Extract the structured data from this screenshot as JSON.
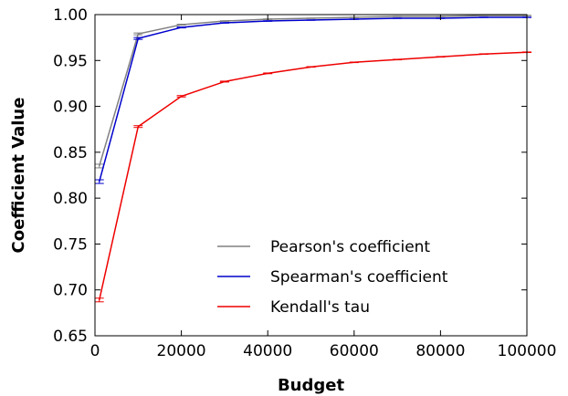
{
  "chart_data": {
    "type": "line",
    "xlabel": "Budget",
    "ylabel": "Coefficient Value",
    "xlim": [
      0,
      100000
    ],
    "ylim": [
      0.65,
      1.0
    ],
    "xticks": [
      0,
      20000,
      40000,
      60000,
      80000,
      100000
    ],
    "xtick_labels": [
      "0",
      "20000",
      "40000",
      "60000",
      "80000",
      "100000"
    ],
    "yticks": [
      0.65,
      0.7,
      0.75,
      0.8,
      0.85,
      0.9,
      0.95,
      1.0
    ],
    "ytick_labels": [
      "0.65",
      "0.70",
      "0.75",
      "0.80",
      "0.85",
      "0.90",
      "0.95",
      "1.00"
    ],
    "grid": false,
    "legend_position": "bottom-right",
    "x": [
      1000,
      10000,
      20000,
      30000,
      40000,
      50000,
      60000,
      70000,
      80000,
      90000,
      100000
    ],
    "series": [
      {
        "name": "Pearson's coefficient",
        "color": "#808080",
        "values": [
          0.835,
          0.979,
          0.989,
          0.993,
          0.995,
          0.996,
          0.997,
          0.998,
          0.998,
          0.999,
          0.999
        ],
        "errors": [
          0.002,
          0.001,
          0.0005,
          0.0003,
          0.0003,
          0.0002,
          0.0002,
          0.0002,
          0.0002,
          0.0002,
          0.0002
        ]
      },
      {
        "name": "Spearman's coefficient",
        "color": "#0000cc",
        "values": [
          0.818,
          0.974,
          0.986,
          0.991,
          0.993,
          0.994,
          0.995,
          0.996,
          0.996,
          0.997,
          0.997
        ],
        "errors": [
          0.002,
          0.001,
          0.0005,
          0.0003,
          0.0003,
          0.0002,
          0.0002,
          0.0002,
          0.0002,
          0.0002,
          0.0002
        ]
      },
      {
        "name": "Kendall's tau",
        "color": "#ee0000",
        "values": [
          0.689,
          0.878,
          0.911,
          0.927,
          0.936,
          0.943,
          0.948,
          0.951,
          0.954,
          0.957,
          0.959
        ],
        "errors": [
          0.002,
          0.001,
          0.0008,
          0.0005,
          0.0004,
          0.0003,
          0.0003,
          0.0003,
          0.0003,
          0.0003,
          0.0003
        ]
      }
    ]
  }
}
